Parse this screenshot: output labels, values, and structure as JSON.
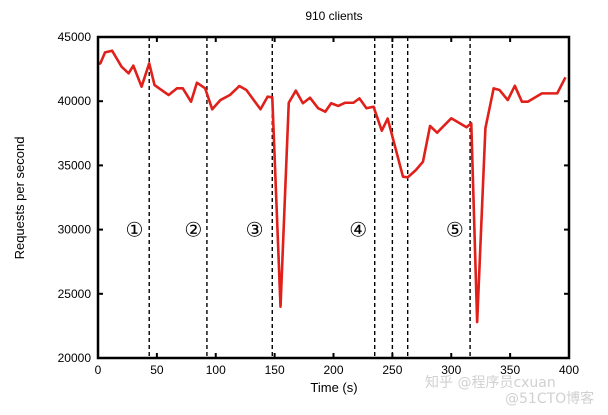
{
  "chart_data": {
    "type": "line",
    "title": "910 clients",
    "xlabel": "Time (s)",
    "ylabel": "Requests per second",
    "xlim": [
      0,
      400
    ],
    "ylim": [
      20000,
      45000
    ],
    "xticks": [
      0,
      50,
      100,
      150,
      200,
      250,
      300,
      350,
      400
    ],
    "yticks": [
      20000,
      25000,
      30000,
      35000,
      40000,
      45000
    ],
    "grid": false,
    "line_color": "#e0201b",
    "series": [
      {
        "name": "910 clients",
        "x": [
          0,
          2,
          6,
          12,
          20,
          26,
          30,
          37,
          43.5,
          48,
          60,
          67,
          72,
          79,
          84,
          91,
          97,
          104,
          112,
          120,
          126,
          138,
          144,
          148,
          155,
          162,
          168,
          174,
          180,
          187,
          193,
          198,
          204,
          210,
          217,
          222,
          228,
          234,
          241,
          246,
          259,
          263,
          270,
          276,
          282,
          288,
          300,
          313,
          317,
          322,
          329,
          336,
          341,
          348,
          354,
          360,
          365,
          377,
          390,
          397
        ],
        "y": [
          42900,
          42950,
          43800,
          43930,
          42690,
          42170,
          42770,
          41130,
          42950,
          41260,
          40480,
          41000,
          41000,
          39960,
          41440,
          41000,
          39370,
          40090,
          40480,
          41180,
          40870,
          39370,
          40350,
          40300,
          24000,
          39880,
          40820,
          39840,
          40270,
          39450,
          39180,
          39840,
          39630,
          39880,
          39880,
          40220,
          39450,
          39570,
          37700,
          38650,
          34120,
          34070,
          34640,
          35290,
          38070,
          37550,
          38670,
          37970,
          38280,
          22800,
          37890,
          41000,
          40870,
          40090,
          41200,
          39960,
          39960,
          40610,
          40610,
          41860
        ]
      }
    ],
    "phase_boundaries": [
      43.5,
      92.5,
      148,
      235,
      250,
      263,
      316
    ],
    "annotations": [
      {
        "text": "①",
        "x": 31,
        "y": 30000
      },
      {
        "text": "②",
        "x": 81,
        "y": 30000
      },
      {
        "text": "③",
        "x": 133,
        "y": 30000
      },
      {
        "text": "④",
        "x": 221,
        "y": 30000
      },
      {
        "text": "⑤",
        "x": 303,
        "y": 30000
      }
    ]
  },
  "watermark": {
    "line1": "知乎 @程序员cxuan",
    "line2": "@51CTO博客"
  }
}
